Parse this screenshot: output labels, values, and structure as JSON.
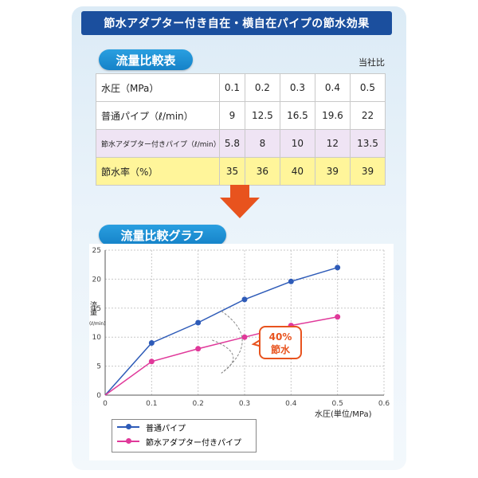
{
  "title": "節水アダプター付き自在・横自在パイプの節水効果",
  "table_section_label": "流量比較表",
  "company_note": "当社比",
  "table": {
    "header": {
      "label": "水圧（MPa）",
      "values": [
        "0.1",
        "0.2",
        "0.3",
        "0.4",
        "0.5"
      ]
    },
    "rows": [
      {
        "label": "普通パイプ（ℓ/min）",
        "values": [
          "9",
          "12.5",
          "16.5",
          "19.6",
          "22"
        ]
      },
      {
        "label": "節水アダプター付きパイプ（ℓ/min）",
        "values": [
          "5.8",
          "8",
          "10",
          "12",
          "13.5"
        ]
      },
      {
        "label": "節水率（%）",
        "values": [
          "35",
          "36",
          "40",
          "39",
          "39"
        ]
      }
    ]
  },
  "graph_section_label": "流量比較グラフ",
  "callout": {
    "line1": "40%",
    "line2": "節水"
  },
  "colors": {
    "normal": "#2e5bb8",
    "saver": "#e0399a",
    "title_bg": "#1b4f9e",
    "arrow": "#e8531e",
    "callout": "#e8531e"
  },
  "chart_data": {
    "type": "line",
    "x": [
      0,
      0.1,
      0.2,
      0.3,
      0.4,
      0.5
    ],
    "series": [
      {
        "name": "普通パイプ",
        "color": "#2e5bb8",
        "values": [
          0,
          9,
          12.5,
          16.5,
          19.6,
          22
        ]
      },
      {
        "name": "節水アダプター付きパイプ",
        "color": "#e0399a",
        "values": [
          0,
          5.8,
          8,
          10,
          12,
          13.5
        ]
      }
    ],
    "xlabel": "水圧(単位/MPa)",
    "ylabel": "流量",
    "ylabel_unit": "(ℓ/min)",
    "xlim": [
      0,
      0.6
    ],
    "ylim": [
      0,
      25
    ],
    "xticks": [
      "0",
      "0.1",
      "0.2",
      "0.3",
      "0.4",
      "0.5",
      "0.6"
    ],
    "yticks": [
      "0",
      "5",
      "10",
      "15",
      "20",
      "25"
    ],
    "grid": true,
    "legend_position": "bottom-left"
  }
}
